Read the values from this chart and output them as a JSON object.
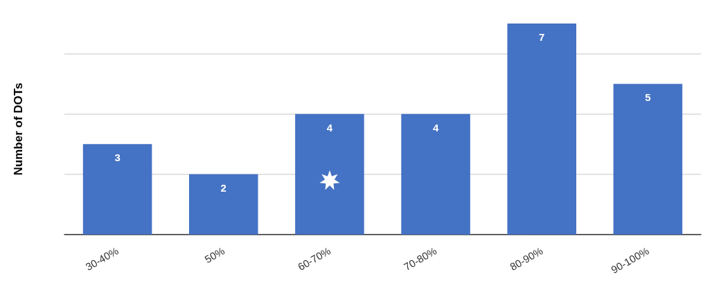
{
  "chart_data": {
    "type": "bar",
    "ylabel": "Number of DOTs",
    "categories": [
      "30-40%",
      "50%",
      "60-70%",
      "70-80%",
      "80-90%",
      "90-100%"
    ],
    "values": [
      3,
      2,
      4,
      4,
      7,
      5
    ],
    "color": "#4472c4",
    "yticks": [
      {
        "value": 0,
        "label": null
      },
      {
        "value": 2,
        "label": null
      },
      {
        "value": 4,
        "label": null
      },
      {
        "value": 6,
        "label": null
      }
    ],
    "grid": "y",
    "tick_labels": "x",
    "data_labels": true
  }
}
